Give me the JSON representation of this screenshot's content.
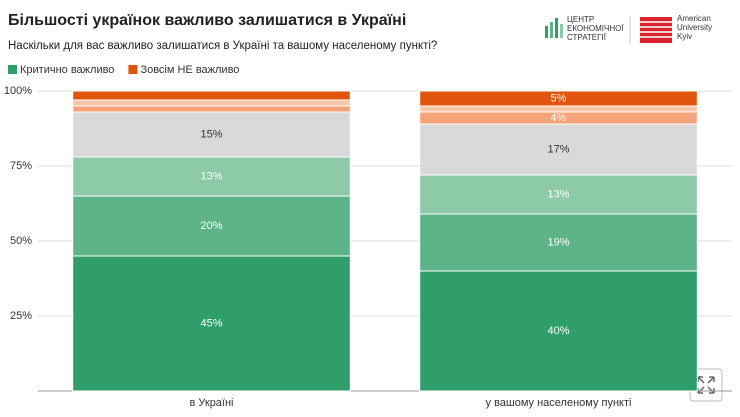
{
  "chart_data": {
    "type": "stacked_bar",
    "title": "Більшості українок важливо залишатися в Україні",
    "subtitle": "Наскільки для вас важливо залишатися в Україні та вашому населеному пункті?",
    "logos": [
      "ЦЕНТР",
      "ЕКОНОМІЧНОЇ",
      "СТРАТЕГІЇ",
      "American",
      "University",
      "Kyiv"
    ],
    "categories": [
      "в Україні",
      "у вашому населеному пункті"
    ],
    "series": [
      {
        "name": "Критично важливо",
        "color": "#2f9e6b",
        "values": [
          45,
          40
        ],
        "value_labels": [
          "45%",
          "40%"
        ]
      },
      {
        "color": "#5db489",
        "values": [
          20,
          19
        ],
        "value_labels": [
          "20%",
          "19%"
        ]
      },
      {
        "color": "#8ccaa8",
        "values": [
          13,
          13
        ],
        "value_labels": [
          "13%",
          "13%"
        ]
      },
      {
        "color": "#d9d9d9",
        "values": [
          15,
          17
        ],
        "value_labels": [
          "15%",
          "17%"
        ]
      },
      {
        "color": "#f4a478",
        "values": [
          2,
          4
        ],
        "value_labels": [
          null,
          "4%"
        ]
      },
      {
        "color": "#f8c6a8",
        "values": [
          2,
          2
        ],
        "value_labels": [
          null,
          null
        ]
      },
      {
        "name": "Зовсім НЕ важливо",
        "color": "#e2550f",
        "values": [
          3,
          5
        ],
        "value_labels": [
          null,
          "5%"
        ]
      }
    ],
    "ylim": [
      0,
      100
    ],
    "yticks": [
      {
        "value": 25,
        "label": "25%"
      },
      {
        "value": 50,
        "label": "50%"
      },
      {
        "value": 75,
        "label": "75%"
      },
      {
        "value": 100,
        "label": "100%"
      }
    ],
    "grid": true
  }
}
